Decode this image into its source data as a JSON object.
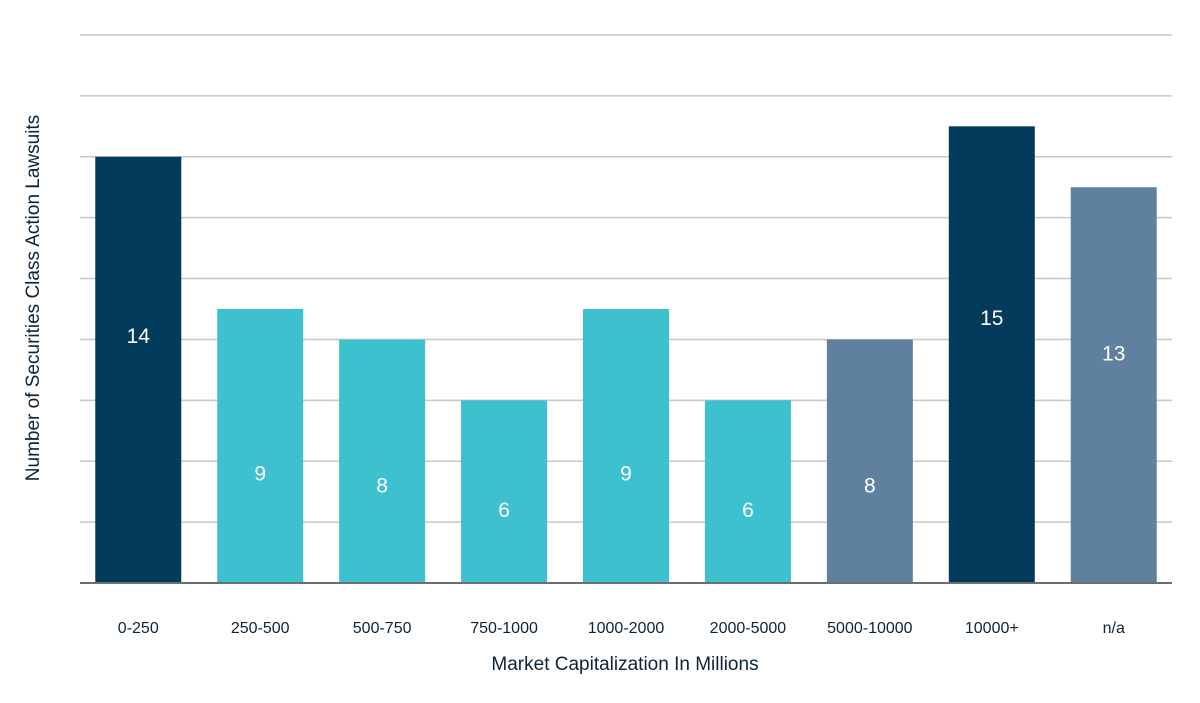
{
  "colors": {
    "dark_navy": "#023A5C",
    "teal": "#3EC1CF",
    "slate_blue": "#5F819F",
    "gridline": "#C8C8C8",
    "axis": "#6E6E6E"
  },
  "chart_data": {
    "type": "bar",
    "xlabel": "Market Capitalization In Millions",
    "ylabel": "Number of Securities Class Action Lawsuits",
    "ylim": [
      0,
      18
    ],
    "grid": true,
    "y_tick_labels_shown": false,
    "categories": [
      "0-250",
      "250-500",
      "500-750",
      "750-1000",
      "1000-2000",
      "2000-5000",
      "5000-10000",
      "10000+",
      "n/a"
    ],
    "values": [
      14,
      9,
      8,
      6,
      9,
      6,
      8,
      15,
      13
    ],
    "value_labels": [
      "14",
      "9",
      "8",
      "6",
      "9",
      "6",
      "8",
      "15",
      "13"
    ],
    "bar_colors": [
      "#023A5C",
      "#3EC1CF",
      "#3EC1CF",
      "#3EC1CF",
      "#3EC1CF",
      "#3EC1CF",
      "#5F819F",
      "#023A5C",
      "#5F819F"
    ]
  }
}
